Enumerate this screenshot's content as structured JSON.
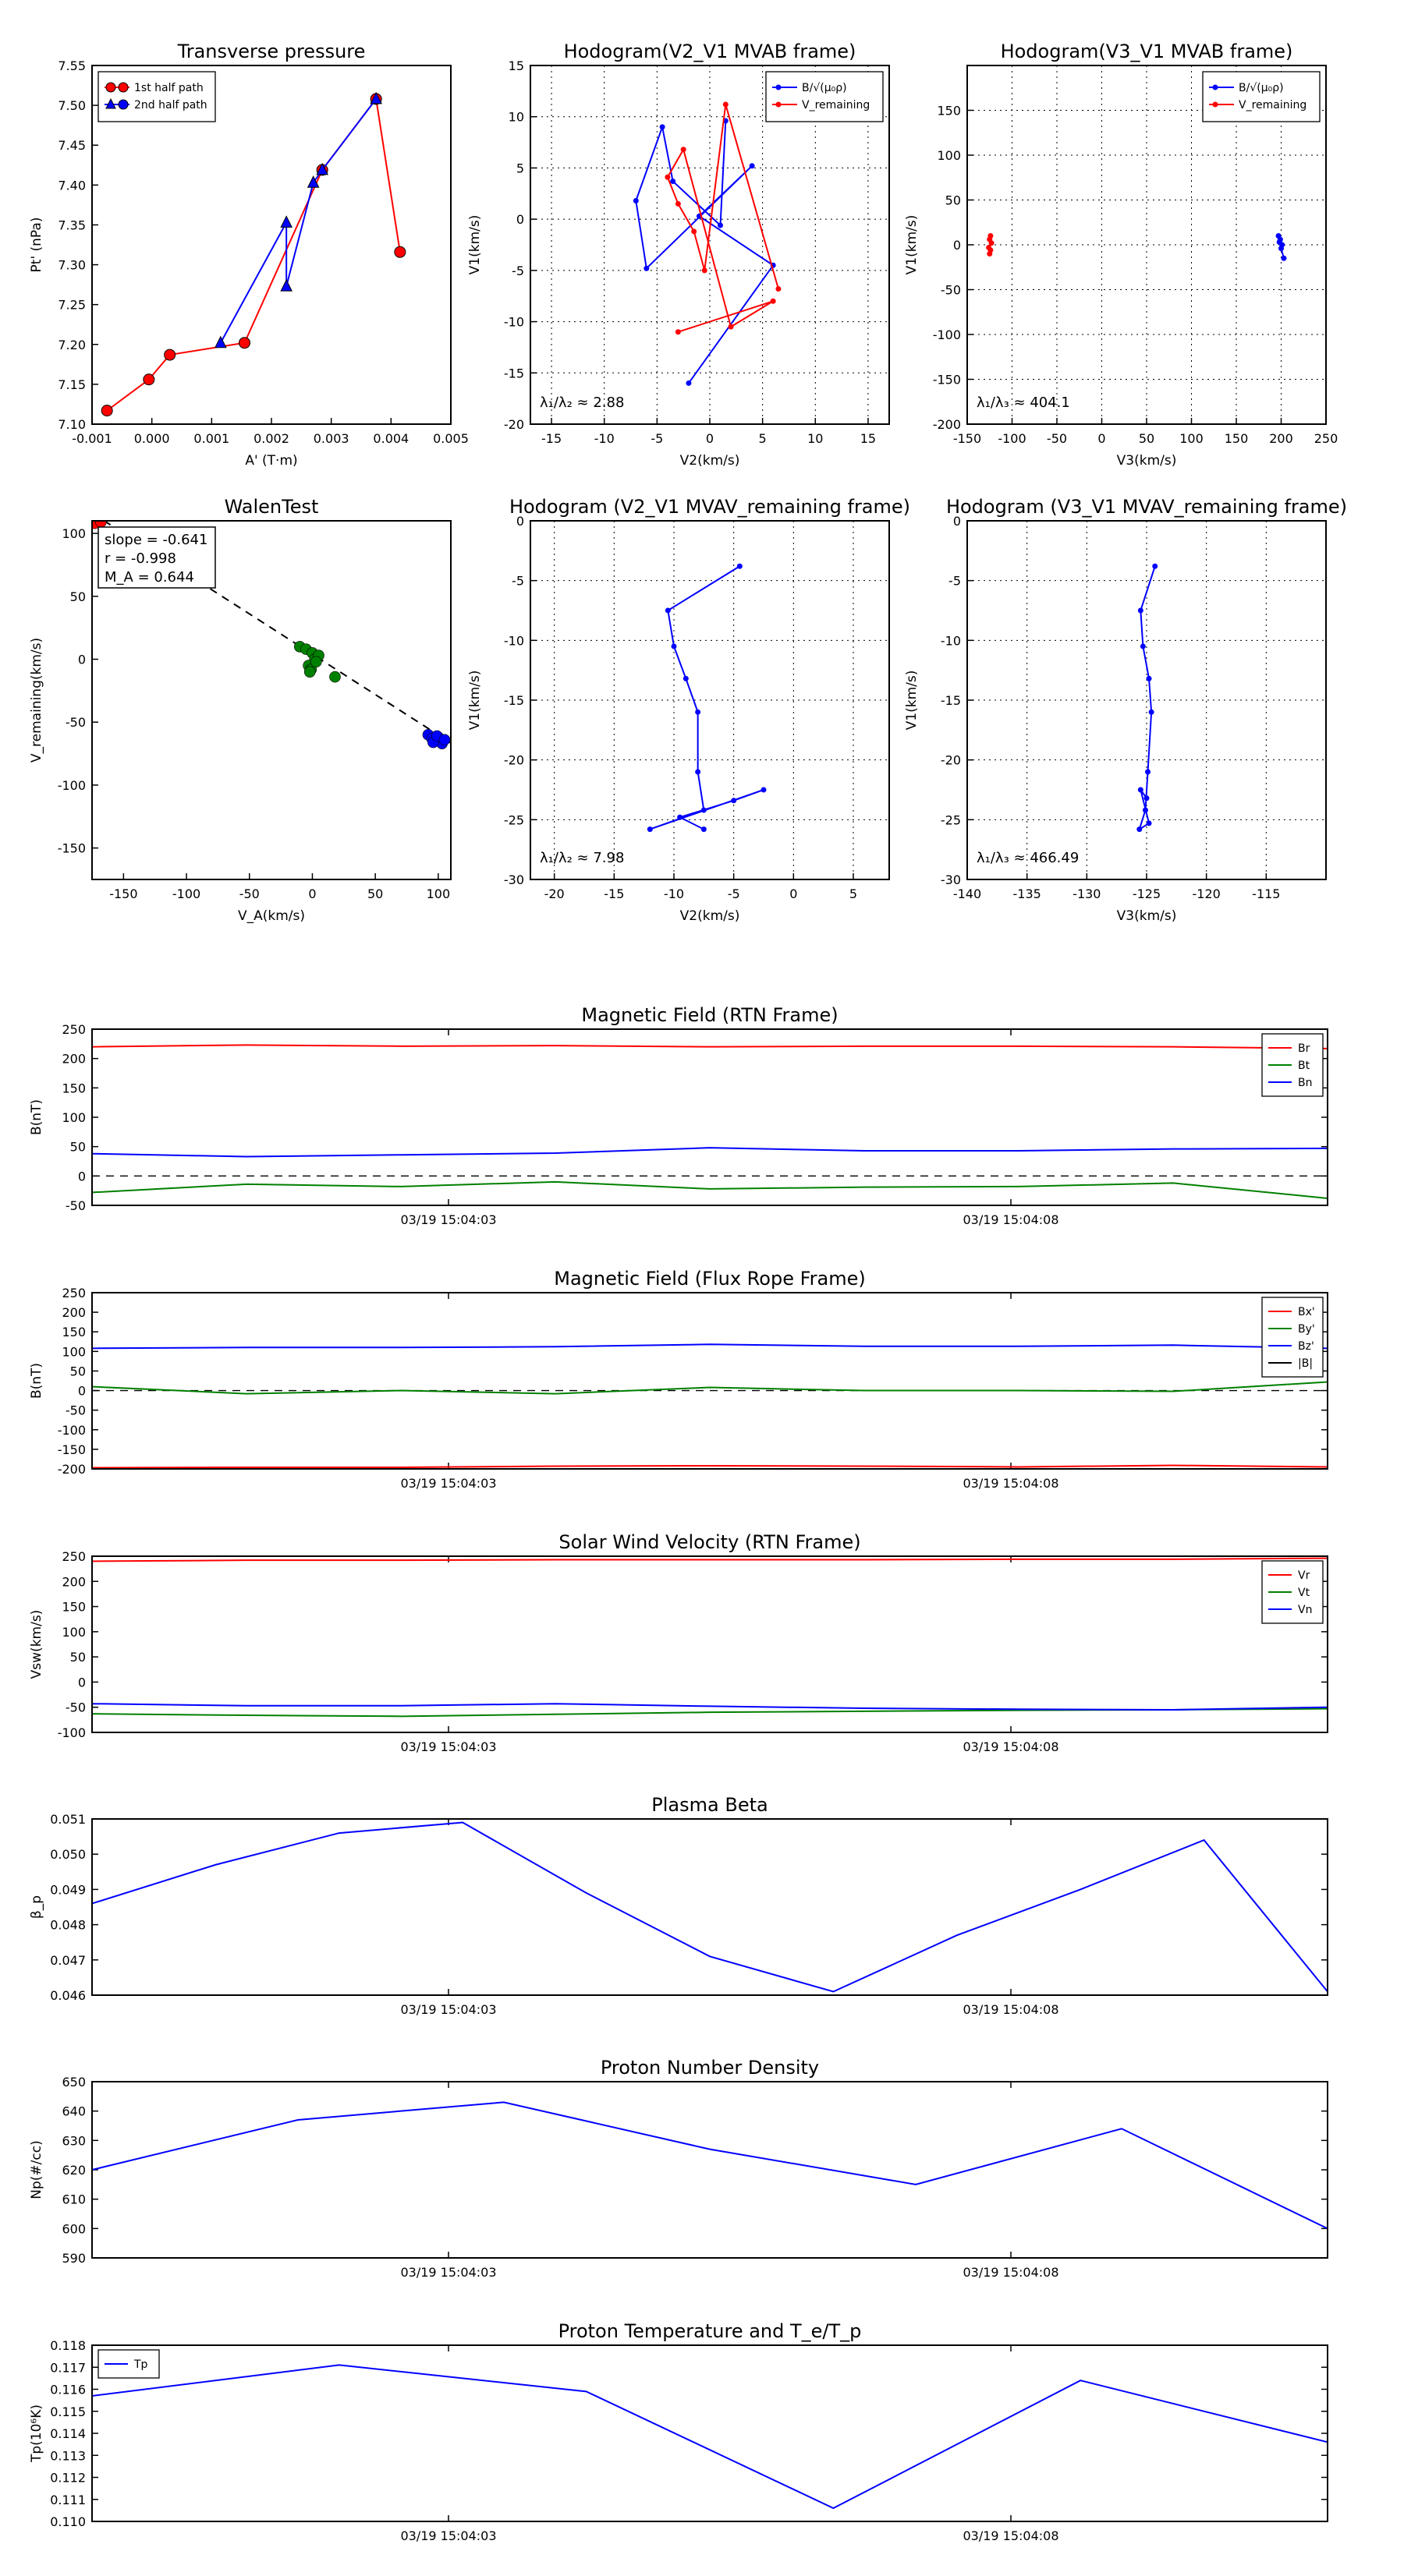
{
  "colors": {
    "red": "#ff0000",
    "green": "#008000",
    "blue": "#0000ff",
    "black": "#000000"
  },
  "chart_data": [
    {
      "type": "line",
      "title": "Transverse pressure",
      "xlabel": "A' (T·m)",
      "ylabel": "Pt' (nPa)",
      "xlim": [
        -0.001,
        0.005
      ],
      "ylim": [
        7.1,
        7.55
      ],
      "xticks": [
        "-0.001",
        "0.000",
        "0.001",
        "0.002",
        "0.003",
        "0.004",
        "0.005"
      ],
      "yticks": [
        "7.10",
        "7.15",
        "7.20",
        "7.25",
        "7.30",
        "7.35",
        "7.40",
        "7.45",
        "7.50",
        "7.55"
      ],
      "legend": "top-left",
      "series": [
        {
          "name": "1st half path",
          "color": "red",
          "marker": "circle",
          "x": [
            -0.00075,
            -5e-05,
            0.0003,
            0.00155,
            0.00285,
            0.00375,
            0.00415
          ],
          "y": [
            7.117,
            7.156,
            7.187,
            7.202,
            7.419,
            7.508,
            7.316
          ]
        },
        {
          "name": "2nd half path",
          "color": "blue",
          "marker": "triangle",
          "x": [
            0.00115,
            0.00225,
            0.00225,
            0.0027,
            0.00285,
            0.00375
          ],
          "y": [
            7.202,
            7.353,
            7.273,
            7.403,
            7.419,
            7.508
          ]
        }
      ]
    },
    {
      "type": "line",
      "title": "Hodogram(V2_V1 MVAB frame)",
      "xlabel": "V2(km/s)",
      "ylabel": "V1(km/s)",
      "xlim": [
        -17,
        17
      ],
      "ylim": [
        -20,
        15
      ],
      "xticks": [
        "-15",
        "-10",
        "-5",
        "0",
        "5",
        "10",
        "15"
      ],
      "yticks": [
        "-20",
        "-15",
        "-10",
        "-5",
        "0",
        "5",
        "10",
        "15"
      ],
      "grid": true,
      "legend": "top-right",
      "annotation": "λ₁/λ₂ ≈ 2.88",
      "series": [
        {
          "name": "B/√(μ₀ρ)",
          "color": "blue",
          "x": [
            -2,
            6,
            -1,
            4,
            -6,
            -7,
            -4.5,
            -3.5,
            1,
            1.5
          ],
          "y": [
            -16,
            -4.5,
            0.3,
            5.2,
            -4.8,
            1.8,
            9,
            3.7,
            -0.6,
            9.6
          ]
        },
        {
          "name": "V_remaining",
          "color": "red",
          "x": [
            -3,
            6,
            2,
            -2.5,
            -4,
            -3,
            -1.5,
            -0.5,
            1.5,
            6.5
          ],
          "y": [
            -11,
            -8,
            -10.5,
            6.8,
            4.1,
            1.5,
            -1.2,
            -5,
            11.2,
            -6.8
          ]
        }
      ]
    },
    {
      "type": "line",
      "title": "Hodogram(V3_V1 MVAB frame)",
      "xlabel": "V3(km/s)",
      "ylabel": "V1(km/s)",
      "xlim": [
        -150,
        250
      ],
      "ylim": [
        -200,
        200
      ],
      "xticks": [
        "-150",
        "-100",
        "-50",
        "0",
        "50",
        "100",
        "150",
        "200",
        "250"
      ],
      "yticks": [
        "-200",
        "-150",
        "-100",
        "-50",
        "0",
        "50",
        "100",
        "150"
      ],
      "grid": true,
      "legend": "top-right",
      "annotation": "λ₁/λ₃ ≈ 404.1",
      "series": [
        {
          "name": "B/√(μ₀ρ)",
          "color": "blue",
          "x": [
            197,
            199,
            198,
            201,
            200,
            203
          ],
          "y": [
            10,
            6,
            3,
            0,
            -4,
            -15
          ]
        },
        {
          "name": "V_remaining",
          "color": "red",
          "x": [
            -125,
            -124,
            -126,
            -123,
            -125,
            -124
          ],
          "y": [
            -10,
            -6,
            -3,
            2,
            6,
            10
          ]
        }
      ]
    },
    {
      "type": "scatter",
      "title": "WalenTest",
      "xlabel": "V_A(km/s)",
      "ylabel": "V_remaining(km/s)",
      "xlim": [
        -175,
        110
      ],
      "ylim": [
        -175,
        110
      ],
      "xticks": [
        "-150",
        "-100",
        "-50",
        "0",
        "50",
        "100"
      ],
      "yticks": [
        "-150",
        "-100",
        "-50",
        "0",
        "50",
        "100"
      ],
      "annotations": [
        "slope = -0.641",
        "r = -0.998",
        "M_A = 0.644"
      ],
      "fit": {
        "slope": -0.641,
        "intercept": 4
      },
      "series": [
        {
          "color": "red",
          "x": [
            -172,
            -170,
            -173,
            -168
          ],
          "y": [
            112,
            110,
            108,
            109
          ]
        },
        {
          "color": "green",
          "x": [
            -10,
            -5,
            0,
            2,
            5,
            -3,
            -1,
            3,
            18,
            -2
          ],
          "y": [
            10,
            8,
            5,
            0,
            3,
            -5,
            -8,
            -2,
            -14,
            -10
          ]
        },
        {
          "color": "blue",
          "x": [
            92,
            95,
            98,
            100,
            103,
            96,
            99,
            105
          ],
          "y": [
            -60,
            -63,
            -65,
            -62,
            -67,
            -66,
            -61,
            -64
          ]
        }
      ]
    },
    {
      "type": "line",
      "title": "Hodogram (V2_V1 MVAV_remaining frame)",
      "xlabel": "V2(km/s)",
      "ylabel": "V1(km/s)",
      "xlim": [
        -22,
        8
      ],
      "ylim": [
        -30,
        0
      ],
      "xticks": [
        "-20",
        "-15",
        "-10",
        "-5",
        "0",
        "5"
      ],
      "yticks": [
        "-30",
        "-25",
        "-20",
        "-15",
        "-10",
        "-5",
        "0"
      ],
      "grid": true,
      "annotation": "λ₁/λ₂ ≈ 7.98",
      "series": [
        {
          "color": "blue",
          "x": [
            -4.5,
            -10.5,
            -10,
            -9,
            -8,
            -8,
            -7.5,
            -12,
            -2.5,
            -5,
            -9.5,
            -7.5
          ],
          "y": [
            -3.8,
            -7.5,
            -10.5,
            -13.2,
            -16,
            -21,
            -24.2,
            -25.8,
            -22.5,
            -23.4,
            -24.8,
            -25.8
          ]
        }
      ]
    },
    {
      "type": "line",
      "title": "Hodogram (V3_V1 MVAV_remaining frame)",
      "xlabel": "V3(km/s)",
      "ylabel": "V1(km/s)",
      "xlim": [
        -140,
        -110
      ],
      "ylim": [
        -30,
        0
      ],
      "xticks": [
        "-140",
        "-135",
        "-130",
        "-125",
        "-120",
        "-115"
      ],
      "yticks": [
        "-30",
        "-25",
        "-20",
        "-15",
        "-10",
        "-5",
        "0"
      ],
      "grid": true,
      "annotation": "λ₁/λ₃ ≈ 466.49",
      "series": [
        {
          "color": "blue",
          "x": [
            -124.3,
            -125.5,
            -125.3,
            -124.8,
            -124.6,
            -124.9,
            -125.1,
            -125.6,
            -124.8,
            -125.5,
            -125.0
          ],
          "y": [
            -3.8,
            -7.5,
            -10.5,
            -13.2,
            -16,
            -21,
            -24.2,
            -25.8,
            -25.3,
            -22.5,
            -23.2
          ]
        }
      ]
    },
    {
      "type": "line",
      "title": "Magnetic Field (RTN Frame)",
      "ylabel": "B(nT)",
      "ylim": [
        -50,
        250
      ],
      "yticks": [
        "-50",
        "0",
        "50",
        "100",
        "150",
        "200",
        "250"
      ],
      "xticks": [
        "03/19 15:04:03",
        "03/19 15:04:08"
      ],
      "legend": "top-right",
      "dashed_zero": true,
      "series": [
        {
          "name": "Br",
          "color": "red",
          "values": [
            220,
            223,
            221,
            222,
            220,
            221,
            221,
            220,
            217
          ]
        },
        {
          "name": "Bt",
          "color": "green",
          "values": [
            -28,
            -14,
            -18,
            -10,
            -22,
            -19,
            -18,
            -12,
            -38
          ]
        },
        {
          "name": "Bn",
          "color": "blue",
          "values": [
            38,
            33,
            36,
            39,
            48,
            43,
            43,
            46,
            47
          ]
        }
      ]
    },
    {
      "type": "line",
      "title": "Magnetic Field (Flux Rope Frame)",
      "ylabel": "B(nT)",
      "ylim": [
        -200,
        250
      ],
      "yticks": [
        "-200",
        "-150",
        "-100",
        "-50",
        "0",
        "50",
        "100",
        "150",
        "200",
        "250"
      ],
      "xticks": [
        "03/19 15:04:03",
        "03/19 15:04:08"
      ],
      "legend": "top-right",
      "dashed_zero": true,
      "series": [
        {
          "name": "Bx'",
          "color": "red",
          "values": [
            -197,
            -196,
            -196,
            -193,
            -192,
            -193,
            -195,
            -191,
            -195
          ]
        },
        {
          "name": "By'",
          "color": "green",
          "values": [
            10,
            -8,
            0,
            -8,
            8,
            0,
            0,
            -2,
            22
          ]
        },
        {
          "name": "Bz'",
          "color": "blue",
          "values": [
            108,
            110,
            110,
            112,
            118,
            113,
            113,
            116,
            108
          ]
        },
        {
          "name": "|B|",
          "color": "black",
          "values": []
        }
      ]
    },
    {
      "type": "line",
      "title": "Solar Wind Velocity (RTN Frame)",
      "ylabel": "Vsw(km/s)",
      "ylim": [
        -100,
        250
      ],
      "yticks": [
        "-100",
        "-50",
        "0",
        "50",
        "100",
        "150",
        "200",
        "250"
      ],
      "xticks": [
        "03/19 15:04:03",
        "03/19 15:04:08"
      ],
      "legend": "top-right",
      "series": [
        {
          "name": "Vr",
          "color": "red",
          "values": [
            240,
            242,
            242,
            243,
            243,
            243,
            244,
            244,
            246
          ]
        },
        {
          "name": "Vt",
          "color": "green",
          "values": [
            -63,
            -66,
            -68,
            -64,
            -60,
            -58,
            -56,
            -55,
            -53
          ]
        },
        {
          "name": "Vn",
          "color": "blue",
          "values": [
            -43,
            -47,
            -47,
            -43,
            -48,
            -52,
            -54,
            -55,
            -50
          ]
        }
      ]
    },
    {
      "type": "line",
      "title": "Plasma Beta",
      "ylabel": "β_p",
      "ylim": [
        0.046,
        0.051
      ],
      "yticks": [
        "0.046",
        "0.047",
        "0.048",
        "0.049",
        "0.050",
        "0.051"
      ],
      "xticks": [
        "03/19 15:04:03",
        "03/19 15:04:08"
      ],
      "series": [
        {
          "color": "blue",
          "values": [
            0.0486,
            0.0497,
            0.0506,
            0.0509,
            0.0489,
            0.0471,
            0.0461,
            0.0477,
            0.049,
            0.0504,
            0.0461
          ]
        }
      ]
    },
    {
      "type": "line",
      "title": "Proton Number Density",
      "ylabel": "Np(#/cc)",
      "ylim": [
        590,
        650
      ],
      "yticks": [
        "590",
        "600",
        "610",
        "620",
        "630",
        "640",
        "650"
      ],
      "xticks": [
        "03/19 15:04:03",
        "03/19 15:04:08"
      ],
      "series": [
        {
          "color": "blue",
          "values": [
            620,
            637,
            643,
            627,
            615,
            634,
            600
          ]
        }
      ]
    },
    {
      "type": "line",
      "title": "Proton Temperature and T_e/T_p",
      "ylabel": "Tp(10⁶K)",
      "ylim": [
        0.11,
        0.118
      ],
      "yticks": [
        "0.110",
        "0.111",
        "0.112",
        "0.113",
        "0.114",
        "0.115",
        "0.116",
        "0.117",
        "0.118"
      ],
      "xticks": [
        "03/19 15:04:03",
        "03/19 15:04:08"
      ],
      "legend": "top-left",
      "series": [
        {
          "name": "Tp",
          "color": "blue",
          "values": [
            0.1157,
            0.1171,
            0.1159,
            0.1106,
            0.1164,
            0.1136
          ]
        }
      ]
    }
  ]
}
